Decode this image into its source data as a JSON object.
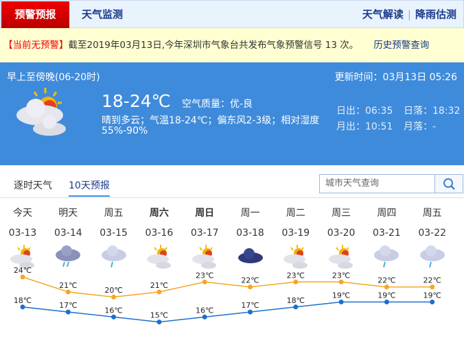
{
  "nav": {
    "tab_warning": "预警预报",
    "tab_monitor": "天气监测",
    "link_interpret": "天气解读",
    "link_rain": "降雨估测"
  },
  "warning": {
    "status": "【当前无预警】",
    "text": "截至2019年03月13日,今年深圳市气象台共发布气象预警信号 13 次。",
    "history_link": "历史预警查询"
  },
  "current": {
    "period": "早上至傍晚(06-20时)",
    "updated": "更新时间：03月13日 05:26",
    "temp": "18-24℃",
    "air_quality": "空气质量：优-良",
    "desc": "晴到多云；气温18-24℃；偏东风2-3级；相对湿度",
    "humidity": "55%-90%",
    "sunrise": "日出：06:35",
    "sunset": "日落：18:32",
    "moonrise": "月出：10:51",
    "moonset": "月落：-",
    "icon": "partly-cloudy-icon"
  },
  "forecast_tabs": [
    "逐时天气",
    "10天预报"
  ],
  "search": {
    "placeholder": "城市天气查询"
  },
  "days": [
    {
      "day": "今天",
      "date": "03-13",
      "icon": "partly-cloudy",
      "bold": false
    },
    {
      "day": "明天",
      "date": "03-14",
      "icon": "rain",
      "bold": false
    },
    {
      "day": "周五",
      "date": "03-15",
      "icon": "light-rain",
      "bold": false
    },
    {
      "day": "周六",
      "date": "03-16",
      "icon": "partly-cloudy",
      "bold": true
    },
    {
      "day": "周日",
      "date": "03-17",
      "icon": "partly-cloudy",
      "bold": true
    },
    {
      "day": "周一",
      "date": "03-18",
      "icon": "overcast",
      "bold": false
    },
    {
      "day": "周二",
      "date": "03-19",
      "icon": "partly-cloudy",
      "bold": false
    },
    {
      "day": "周三",
      "date": "03-20",
      "icon": "partly-cloudy",
      "bold": false
    },
    {
      "day": "周四",
      "date": "03-21",
      "icon": "light-rain",
      "bold": false
    },
    {
      "day": "周五",
      "date": "03-22",
      "icon": "light-rain",
      "bold": false
    }
  ],
  "chart_data": {
    "type": "line",
    "categories": [
      "03-13",
      "03-14",
      "03-15",
      "03-16",
      "03-17",
      "03-18",
      "03-19",
      "03-20",
      "03-21",
      "03-22"
    ],
    "series": [
      {
        "values": [
          24,
          21,
          20,
          21,
          23,
          22,
          23,
          23,
          22,
          22
        ],
        "color": "#f5a623"
      },
      {
        "values": [
          18,
          17,
          16,
          15,
          16,
          17,
          18,
          19,
          19,
          19
        ],
        "color": "#1a6fd0"
      }
    ],
    "unit": "℃"
  }
}
